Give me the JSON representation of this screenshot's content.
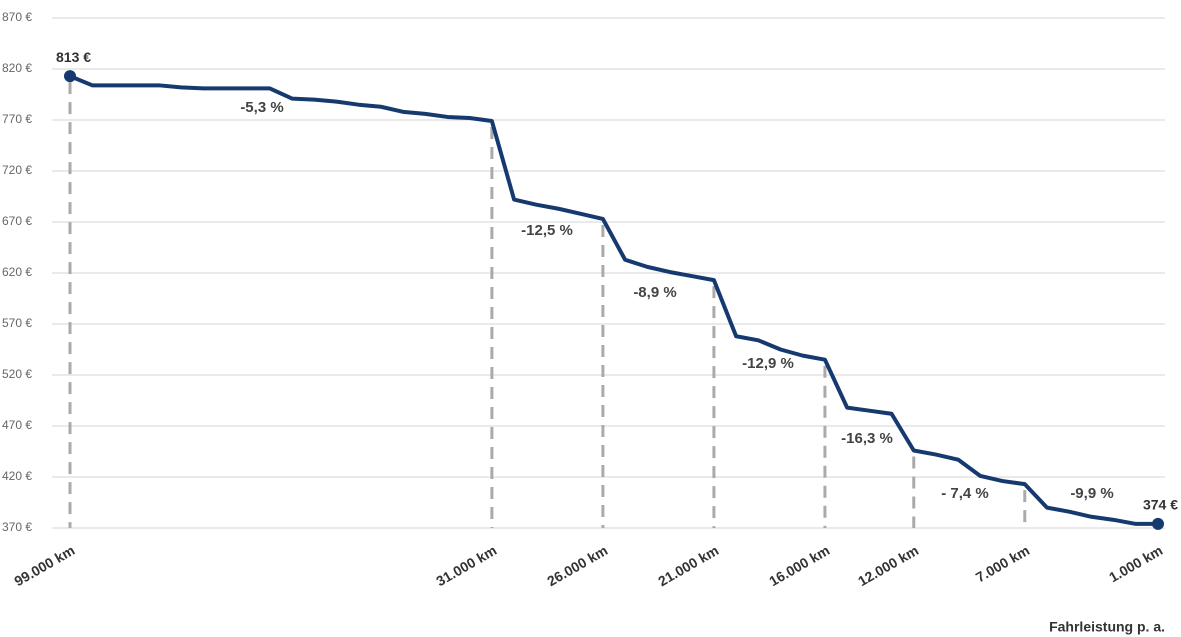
{
  "chart_data": {
    "type": "line",
    "x_label": "Fahrleistung p. a.",
    "categories": [
      "99.000 km",
      null,
      null,
      null,
      null,
      null,
      null,
      null,
      null,
      null,
      null,
      null,
      null,
      null,
      null,
      null,
      null,
      null,
      null,
      "31.000 km",
      null,
      null,
      null,
      null,
      "26.000 km",
      null,
      null,
      null,
      null,
      "21.000 km",
      null,
      null,
      null,
      null,
      "16.000 km",
      null,
      null,
      null,
      "12.000 km",
      null,
      null,
      null,
      null,
      "7.000 km",
      null,
      null,
      null,
      null,
      null,
      "1.000 km"
    ],
    "series": [
      {
        "color": "#163a70",
        "values": [
          813,
          804,
          804,
          804,
          804,
          802,
          801,
          801,
          801,
          801,
          791,
          790,
          788,
          785,
          783,
          778,
          776,
          773,
          772,
          769,
          692,
          687,
          683,
          678,
          673,
          633,
          626,
          621,
          617,
          613,
          558,
          554,
          545,
          539,
          535,
          488,
          485,
          482,
          446,
          442,
          437,
          421,
          416,
          413,
          390,
          386,
          381,
          378,
          374,
          374
        ],
        "value_labels": [
          "813 €",
          null,
          null,
          null,
          null,
          null,
          null,
          null,
          null,
          null,
          null,
          null,
          null,
          null,
          null,
          null,
          null,
          null,
          null,
          null,
          null,
          null,
          null,
          null,
          null,
          null,
          null,
          null,
          null,
          null,
          null,
          null,
          null,
          null,
          null,
          null,
          null,
          null,
          null,
          null,
          null,
          null,
          null,
          null,
          null,
          null,
          null,
          null,
          null,
          "374 €"
        ]
      }
    ],
    "ylim": [
      370,
      870
    ],
    "yticks": [
      {
        "value": 370,
        "label": "370 €"
      },
      {
        "value": 420,
        "label": "420 €"
      },
      {
        "value": 470,
        "label": "470 €"
      },
      {
        "value": 520,
        "label": "520 €"
      },
      {
        "value": 570,
        "label": "570 €"
      },
      {
        "value": 620,
        "label": "620 €"
      },
      {
        "value": 670,
        "label": "670 €"
      },
      {
        "value": 720,
        "label": "720 €"
      },
      {
        "value": 770,
        "label": "770 €"
      },
      {
        "value": 820,
        "label": "820 €"
      },
      {
        "value": 870,
        "label": "870 €"
      }
    ],
    "grid": true,
    "annotations": [
      "-5,3 %",
      "-12,5 %",
      "-8,9 %",
      "-12,9 %",
      "-16,3 %",
      "- 7,4 %",
      "-9,9 %"
    ]
  }
}
